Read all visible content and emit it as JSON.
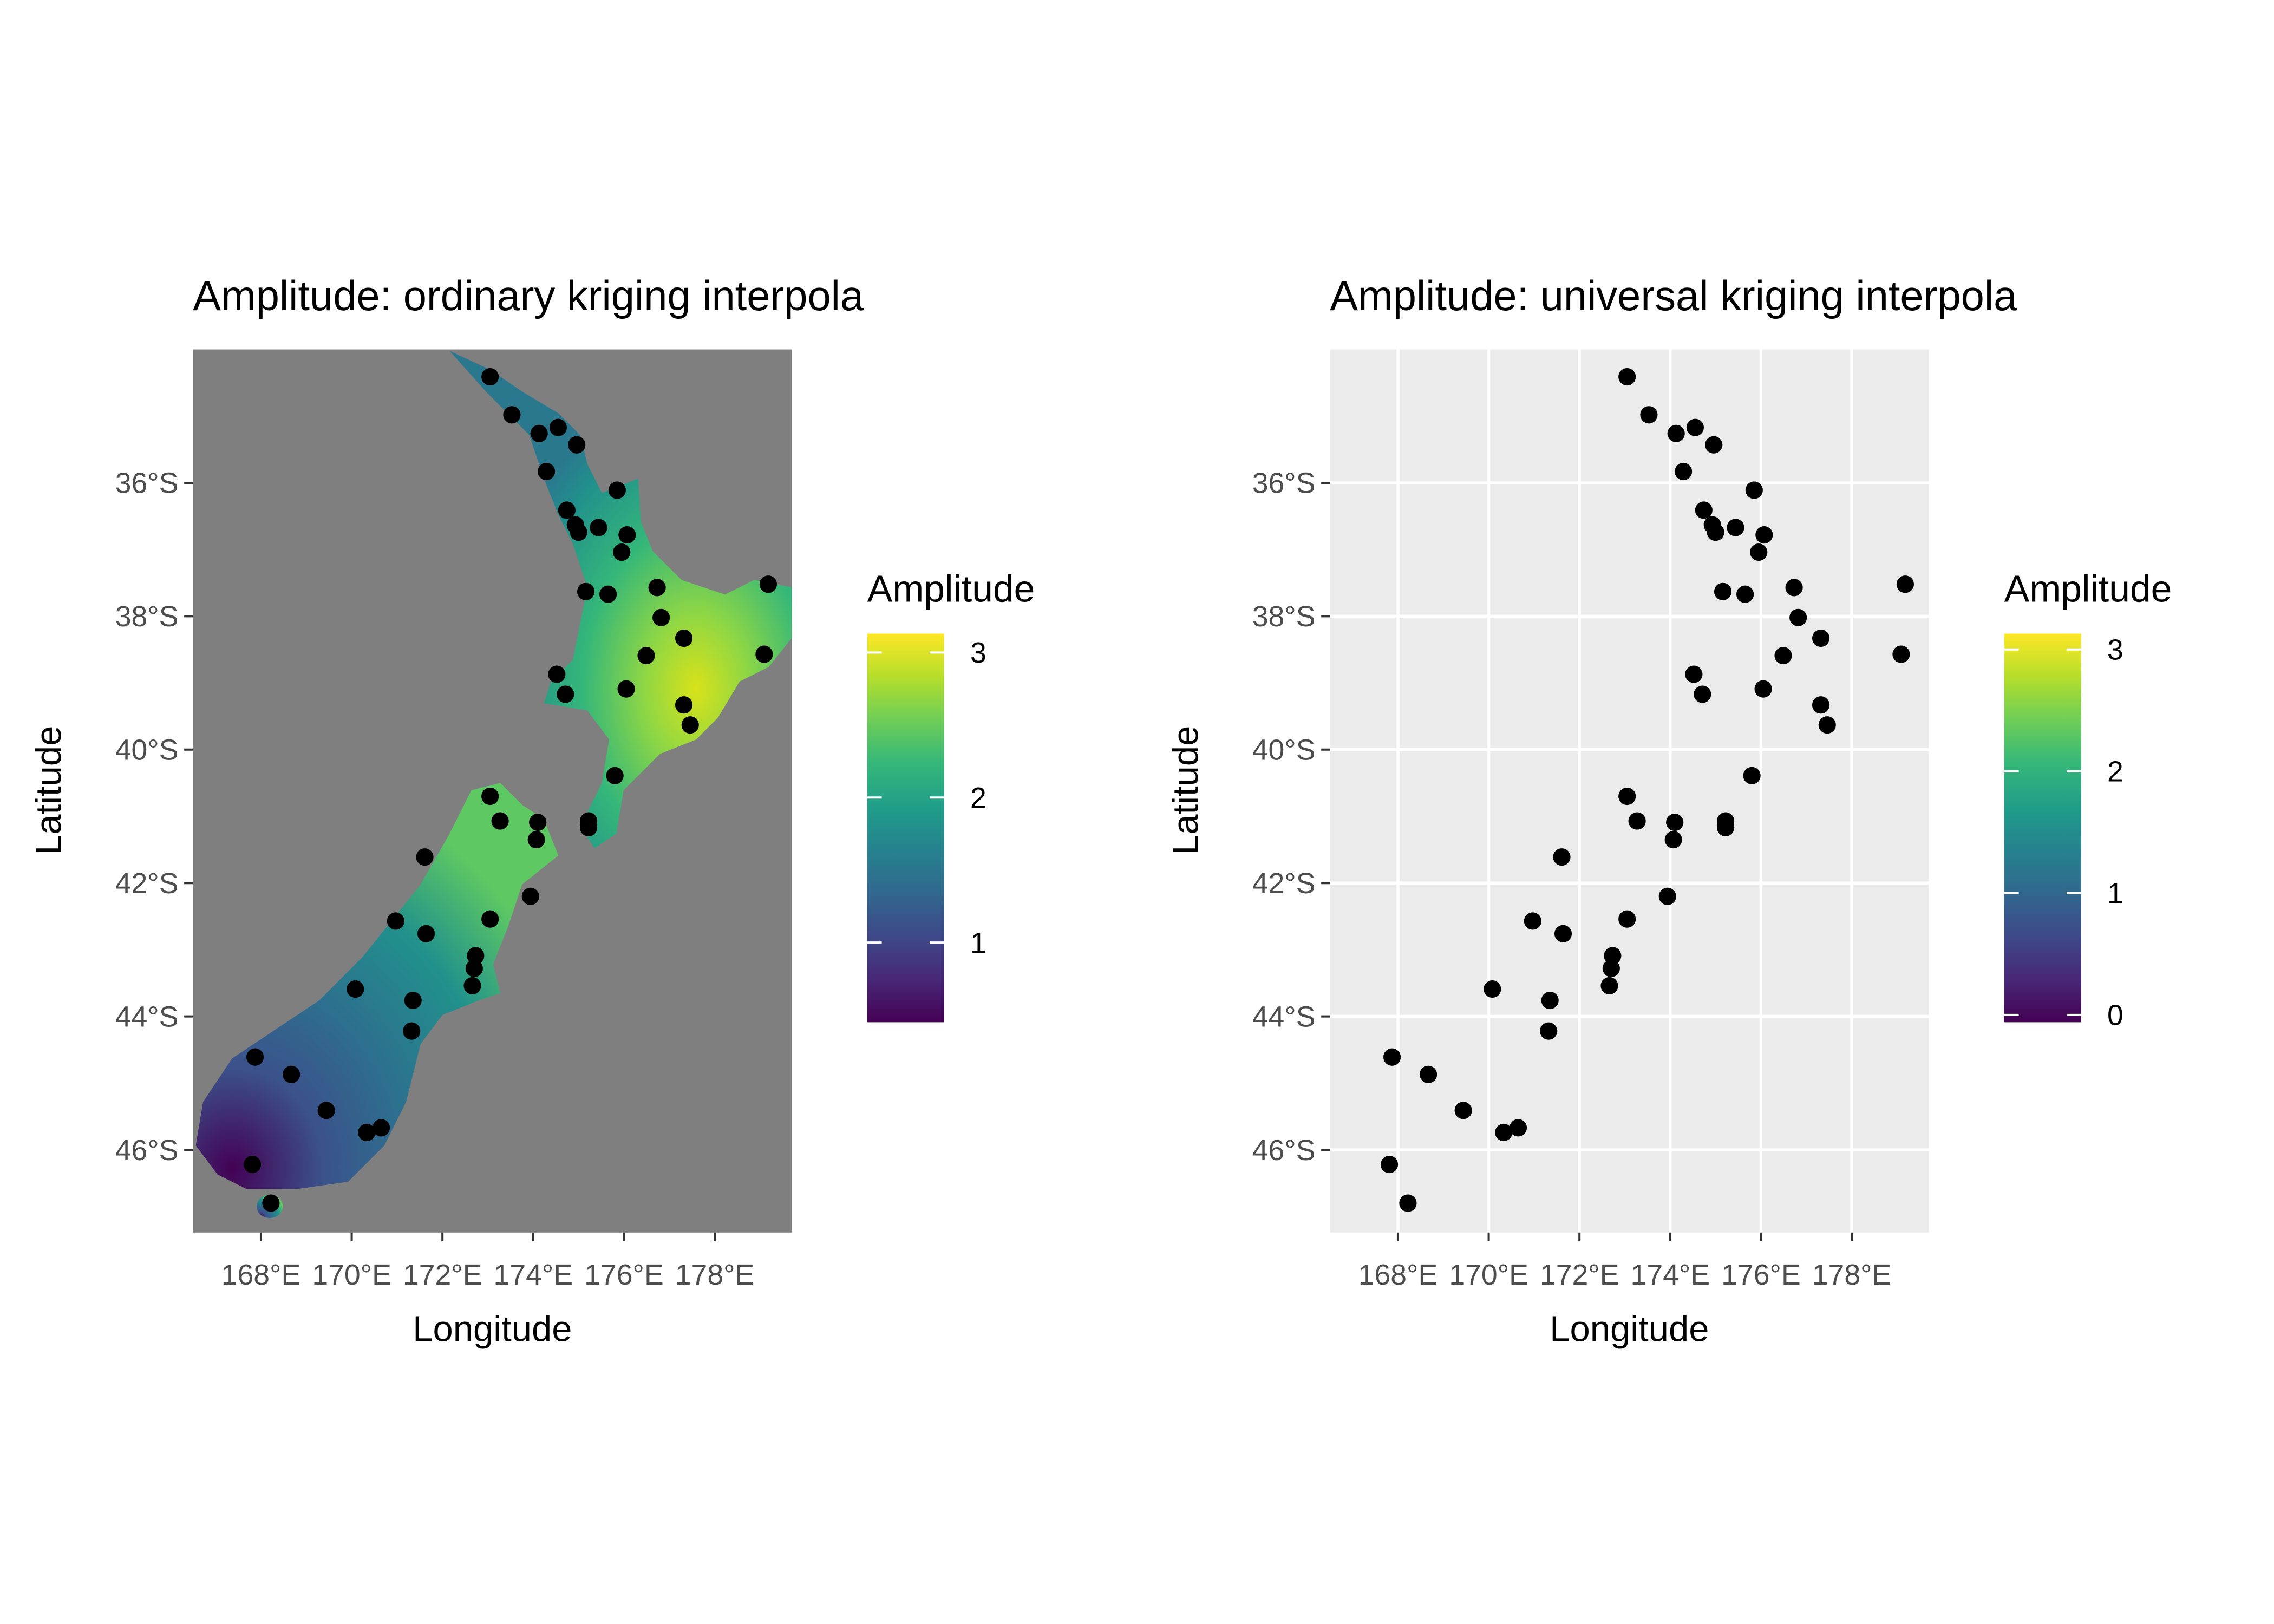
{
  "panels": [
    {
      "title": "Amplitude: ordinary kriging interpola",
      "x_label": "Longitude",
      "y_label": "Latitude",
      "xlim": [
        166.5,
        179.7
      ],
      "ylim": [
        -47.24,
        -34.0
      ],
      "xticks": [
        {
          "value": 168,
          "label": "168°E"
        },
        {
          "value": 170,
          "label": "170°E"
        },
        {
          "value": 172,
          "label": "172°E"
        },
        {
          "value": 174,
          "label": "174°E"
        },
        {
          "value": 176,
          "label": "176°E"
        },
        {
          "value": 178,
          "label": "178°E"
        }
      ],
      "yticks": [
        {
          "value": -36,
          "label": "36°S"
        },
        {
          "value": -38,
          "label": "38°S"
        },
        {
          "value": -40,
          "label": "40°S"
        },
        {
          "value": -42,
          "label": "42°S"
        },
        {
          "value": -44,
          "label": "44°S"
        },
        {
          "value": -46,
          "label": "46°S"
        }
      ],
      "background": "#7f7f7f",
      "grid": false,
      "legend": {
        "title": "Amplitude",
        "lim": [
          0.45,
          3.13
        ],
        "ticks": [
          1,
          2,
          3
        ],
        "colors": [
          "#440154",
          "#482878",
          "#3e4989",
          "#31688e",
          "#26828e",
          "#1f9e89",
          "#35b779",
          "#6ece58",
          "#b5de2b",
          "#fde725"
        ]
      }
    },
    {
      "title": "Amplitude: universal kriging interpola",
      "x_label": "Longitude",
      "y_label": "Latitude",
      "xlim": [
        166.5,
        179.7
      ],
      "ylim": [
        -47.24,
        -34.0
      ],
      "xticks": [
        {
          "value": 168,
          "label": "168°E"
        },
        {
          "value": 170,
          "label": "170°E"
        },
        {
          "value": 172,
          "label": "172°E"
        },
        {
          "value": 174,
          "label": "174°E"
        },
        {
          "value": 176,
          "label": "176°E"
        },
        {
          "value": 178,
          "label": "178°E"
        }
      ],
      "yticks": [
        {
          "value": -36,
          "label": "36°S"
        },
        {
          "value": -38,
          "label": "38°S"
        },
        {
          "value": -40,
          "label": "40°S"
        },
        {
          "value": -42,
          "label": "42°S"
        },
        {
          "value": -44,
          "label": "44°S"
        },
        {
          "value": -46,
          "label": "46°S"
        }
      ],
      "background": "#ebebeb",
      "grid": true,
      "legend": {
        "title": "Amplitude",
        "lim": [
          -0.06,
          3.13
        ],
        "ticks": [
          0,
          1,
          2,
          3
        ],
        "colors": [
          "#440154",
          "#482878",
          "#3e4989",
          "#31688e",
          "#26828e",
          "#1f9e89",
          "#35b779",
          "#6ece58",
          "#b5de2b",
          "#fde725"
        ]
      }
    }
  ],
  "stations": {
    "lon": [
      173.05,
      173.53,
      174.13,
      174.55,
      174.96,
      174.29,
      174.74,
      174.93,
      175.0,
      175.44,
      175.85,
      176.07,
      175.95,
      175.16,
      175.65,
      176.73,
      176.82,
      177.32,
      176.49,
      174.52,
      174.71,
      176.05,
      179.18,
      179.09,
      177.32,
      177.46,
      175.8,
      175.22,
      175.22,
      173.05,
      173.27,
      174.1,
      174.07,
      171.61,
      173.94,
      170.97,
      173.05,
      171.64,
      172.73,
      172.7,
      172.66,
      170.08,
      171.35,
      171.32,
      167.87,
      168.67,
      169.44,
      170.65,
      170.33,
      167.81,
      168.22
    ],
    "lat": [
      -34.41,
      -34.98,
      -35.26,
      -35.17,
      -35.43,
      -35.83,
      -36.41,
      -36.63,
      -36.74,
      -36.67,
      -36.11,
      -36.78,
      -37.04,
      -37.63,
      -37.67,
      -37.57,
      -38.02,
      -38.33,
      -38.59,
      -38.87,
      -39.17,
      -39.09,
      -37.52,
      -38.57,
      -39.33,
      -39.63,
      -40.39,
      -41.07,
      -41.17,
      -40.7,
      -41.07,
      -41.09,
      -41.35,
      -41.61,
      -42.2,
      -42.57,
      -42.54,
      -42.76,
      -43.09,
      -43.28,
      -43.54,
      -43.59,
      -43.76,
      -44.22,
      -44.61,
      -44.87,
      -45.41,
      -45.67,
      -45.74,
      -46.22,
      -46.8
    ]
  }
}
